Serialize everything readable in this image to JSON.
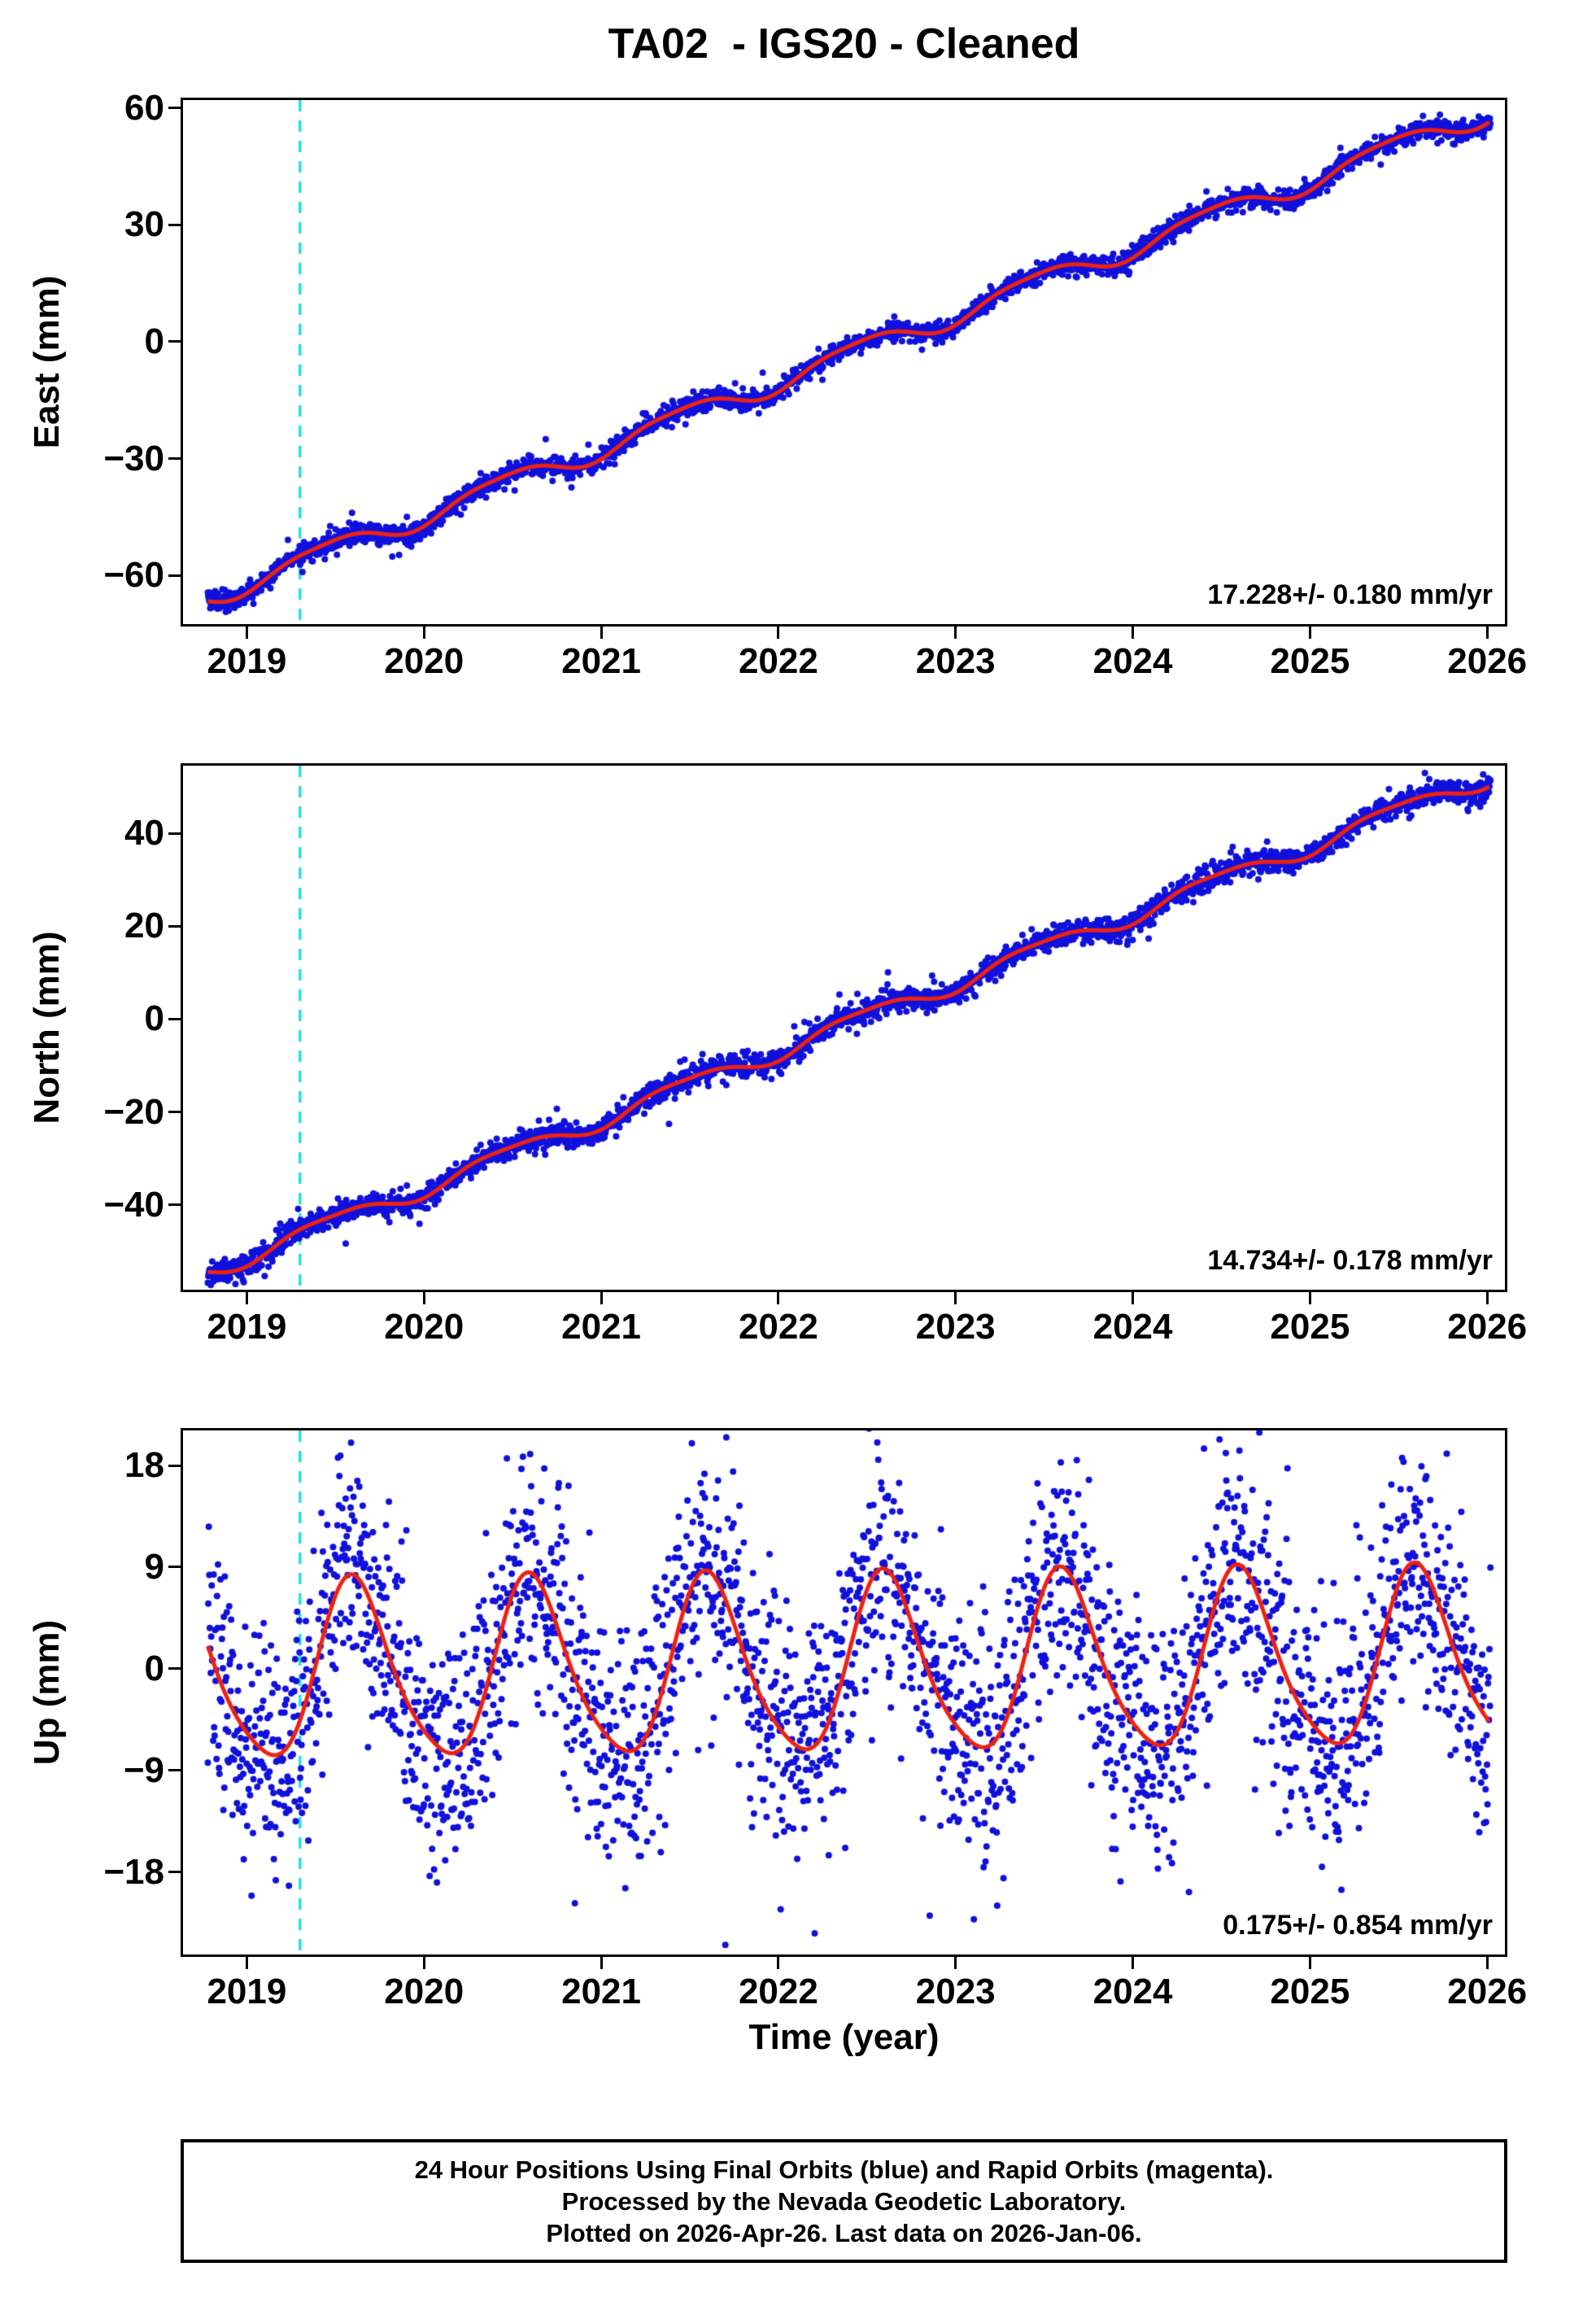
{
  "title": "TA02  - IGS20 - Cleaned",
  "xlabel": "Time (year)",
  "colors": {
    "points": "#1111dd",
    "fit": "#ee2211",
    "reference_line": "#22e0e0",
    "frame": "#000000"
  },
  "footer": {
    "line1": "24 Hour Positions Using Final Orbits (blue) and Rapid Orbits (magenta).",
    "line2": "Processed by the Nevada Geodetic Laboratory.",
    "line3": "Plotted on 2026-Apr-26. Last data on 2026-Jan-06."
  },
  "chart_data": [
    {
      "type": "scatter",
      "name": "east",
      "ylabel": "East (mm)",
      "rate_label": "17.228+/- 0.180 mm/yr",
      "xlim": [
        2018.64,
        2026.1
      ],
      "ylim": [
        -72.5,
        62.0
      ],
      "xticks": [
        2019,
        2020,
        2021,
        2022,
        2023,
        2024,
        2025,
        2026
      ],
      "yticks": [
        -60,
        -30,
        0,
        30,
        60
      ],
      "grid": false,
      "legend": "none",
      "reference_line_x": 2019.3,
      "data_start": 2018.78,
      "data_end": 2026.02,
      "point_radius": 4,
      "model": {
        "seed": 11,
        "t0": 2018.78,
        "intercept": -65.5,
        "slope": 17.228,
        "annual_amp": 2.7,
        "annual_phase": 0.2,
        "semiannual_amp": 0.6,
        "semiannual_phase": 0.05,
        "noise_sd": 1.25,
        "outlier_frac": 0.05,
        "outlier_sd": 2.6
      }
    },
    {
      "type": "scatter",
      "name": "north",
      "ylabel": "North (mm)",
      "rate_label": "14.734+/- 0.178 mm/yr",
      "xlim": [
        2018.64,
        2026.1
      ],
      "ylim": [
        -58.3,
        54.6
      ],
      "xticks": [
        2019,
        2020,
        2021,
        2022,
        2023,
        2024,
        2025,
        2026
      ],
      "yticks": [
        -40,
        -20,
        0,
        20,
        40
      ],
      "grid": false,
      "legend": "none",
      "reference_line_x": 2019.3,
      "data_start": 2018.78,
      "data_end": 2026.02,
      "point_radius": 4,
      "model": {
        "seed": 22,
        "t0": 2018.78,
        "intercept": -54.2,
        "slope": 14.734,
        "annual_amp": 1.9,
        "annual_phase": 0.22,
        "semiannual_amp": 0.5,
        "semiannual_phase": 0.1,
        "noise_sd": 1.25,
        "outlier_frac": 0.05,
        "outlier_sd": 2.6
      }
    },
    {
      "type": "scatter",
      "name": "up",
      "ylabel": "Up (mm)",
      "rate_label": "0.175+/- 0.854 mm/yr",
      "xlim": [
        2018.64,
        2026.1
      ],
      "ylim": [
        -25.3,
        21.1
      ],
      "xticks": [
        2019,
        2020,
        2021,
        2022,
        2023,
        2024,
        2025,
        2026
      ],
      "yticks": [
        -18,
        -9,
        0,
        9,
        18
      ],
      "grid": false,
      "legend": "none",
      "reference_line_x": 2019.3,
      "data_start": 2018.78,
      "data_end": 2026.02,
      "point_radius": 4,
      "model": {
        "seed": 33,
        "t0": 2018.78,
        "intercept": -0.6,
        "slope": 0.175,
        "annual_amp": 7.8,
        "annual_phase": 0.36,
        "semiannual_amp": 1.2,
        "semiannual_phase": 0.43,
        "noise_sd": 5.2,
        "outlier_frac": 0.12,
        "outlier_sd": 9.5
      }
    }
  ]
}
